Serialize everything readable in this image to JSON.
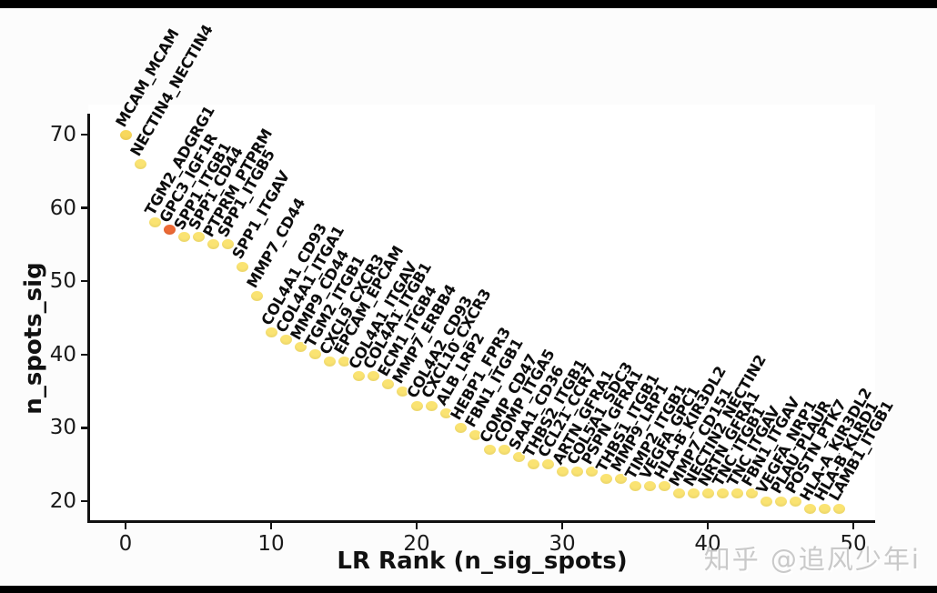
{
  "watermark": {
    "text": "知乎 @追风少年i"
  },
  "chart_data": {
    "type": "scatter",
    "title": "",
    "xlabel": "LR Rank (n_sig_spots)",
    "ylabel": "n_spots_sig",
    "xticks": [
      0,
      10,
      20,
      30,
      40,
      50
    ],
    "yticks": [
      70,
      60,
      50,
      40,
      30,
      20
    ],
    "xlim": [
      -2,
      51.5
    ],
    "ylim": [
      17,
      72
    ],
    "grid": false,
    "legend": null,
    "marker_colors": {
      "default": "#FAE372",
      "highlight": "#ED6A35"
    },
    "points": [
      {
        "rank": 0,
        "label": "MCAM_MCAM",
        "value": 70,
        "color": "#F8D85C"
      },
      {
        "rank": 1,
        "label": "NECTIN4_NECTIN4",
        "value": 66
      },
      {
        "rank": 2,
        "label": "TGM2_ADGRG1",
        "value": 58
      },
      {
        "rank": 3,
        "label": "GPC3_IGF1R",
        "value": 57,
        "color": "#ED6A35"
      },
      {
        "rank": 4,
        "label": "SPP1_ITGB1",
        "value": 56
      },
      {
        "rank": 5,
        "label": "SPP1_CD44",
        "value": 56
      },
      {
        "rank": 6,
        "label": "PTPRM_PTPRM",
        "value": 55
      },
      {
        "rank": 7,
        "label": "SPP1_ITGB5",
        "value": 55
      },
      {
        "rank": 8,
        "label": "SPP1_ITGAV",
        "value": 52
      },
      {
        "rank": 9,
        "label": "MMP7_CD44",
        "value": 48
      },
      {
        "rank": 10,
        "label": "COL4A1_CD93",
        "value": 43
      },
      {
        "rank": 11,
        "label": "COL4A1_ITGA1",
        "value": 42
      },
      {
        "rank": 12,
        "label": "MMP9_CD44",
        "value": 41
      },
      {
        "rank": 13,
        "label": "TGM2_ITGB1",
        "value": 40
      },
      {
        "rank": 14,
        "label": "CXCL9_CXCR3",
        "value": 39
      },
      {
        "rank": 15,
        "label": "EPCAM_EPCAM",
        "value": 39
      },
      {
        "rank": 16,
        "label": "COL4A1_ITGAV",
        "value": 37
      },
      {
        "rank": 17,
        "label": "COL4A1_ITGB1",
        "value": 37
      },
      {
        "rank": 18,
        "label": "ECM1_ITGB4",
        "value": 36
      },
      {
        "rank": 19,
        "label": "MMP7_ERBB4",
        "value": 35
      },
      {
        "rank": 20,
        "label": "COL4A2_CD93",
        "value": 33
      },
      {
        "rank": 21,
        "label": "CXCL10_CXCR3",
        "value": 33
      },
      {
        "rank": 22,
        "label": "ALB_LRP2",
        "value": 32
      },
      {
        "rank": 23,
        "label": "HEBP1_FPR3",
        "value": 30
      },
      {
        "rank": 24,
        "label": "FBN1_ITGB1",
        "value": 29
      },
      {
        "rank": 25,
        "label": "COMP_CD47",
        "value": 27
      },
      {
        "rank": 26,
        "label": "COMP_ITGA5",
        "value": 27
      },
      {
        "rank": 27,
        "label": "SAA1_CD36",
        "value": 26
      },
      {
        "rank": 28,
        "label": "THBS2_ITGB1",
        "value": 25
      },
      {
        "rank": 29,
        "label": "CCL21_CCR7",
        "value": 25
      },
      {
        "rank": 30,
        "label": "ARTN_GFRA1",
        "value": 24
      },
      {
        "rank": 31,
        "label": "COL5A1_SDC3",
        "value": 24
      },
      {
        "rank": 32,
        "label": "PSPN_GFRA1",
        "value": 24
      },
      {
        "rank": 33,
        "label": "THBS1_ITGB1",
        "value": 23
      },
      {
        "rank": 34,
        "label": "MMP9_LRP1",
        "value": 23
      },
      {
        "rank": 35,
        "label": "TIMP2_ITGB1",
        "value": 22
      },
      {
        "rank": 36,
        "label": "VEGFA_GPC1",
        "value": 22
      },
      {
        "rank": 37,
        "label": "HLA-B_KIR3DL2",
        "value": 22
      },
      {
        "rank": 38,
        "label": "MMP7_CD151",
        "value": 21
      },
      {
        "rank": 39,
        "label": "NECTIN2_NECTIN2",
        "value": 21
      },
      {
        "rank": 40,
        "label": "NRTN_GFRA1",
        "value": 21
      },
      {
        "rank": 41,
        "label": "TNC_ITGB1",
        "value": 21
      },
      {
        "rank": 42,
        "label": "TNC_ITGAV",
        "value": 21
      },
      {
        "rank": 43,
        "label": "FBN1_ITGAV",
        "value": 21
      },
      {
        "rank": 44,
        "label": "VEGFA_NRP1",
        "value": 20
      },
      {
        "rank": 45,
        "label": "PLAU_PLAUR",
        "value": 20
      },
      {
        "rank": 46,
        "label": "POSTN_PTK7",
        "value": 20
      },
      {
        "rank": 47,
        "label": "HLA-A_KIR3DL2",
        "value": 19
      },
      {
        "rank": 48,
        "label": "HLA-B_KLRD1",
        "value": 19
      },
      {
        "rank": 49,
        "label": "LAMB1_ITGB1",
        "value": 19
      }
    ]
  }
}
